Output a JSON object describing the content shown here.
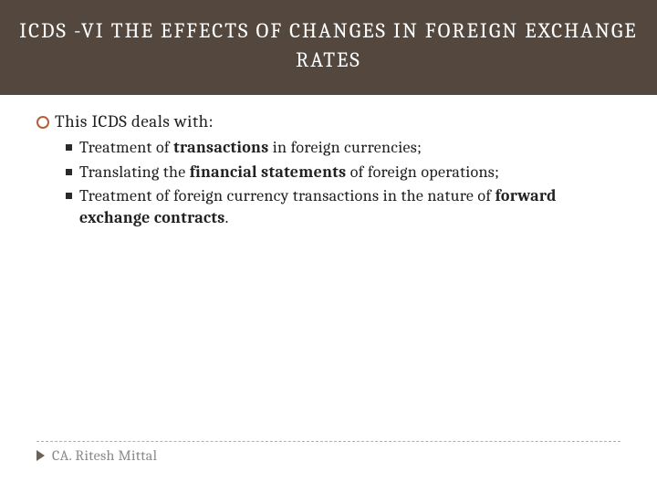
{
  "title": "ICDS -VI THE EFFECTS OF CHANGES IN FOREIGN EXCHANGE RATES",
  "intro": "This ICDS deals with:",
  "bullets": [
    {
      "pre": "Treatment of ",
      "bold": "transactions",
      "post": " in foreign currencies;"
    },
    {
      "pre": "Translating the ",
      "bold": "financial statements",
      "post": " of foreign operations;"
    },
    {
      "pre": "Treatment of foreign currency transactions in the nature of ",
      "bold": "forward exchange contracts",
      "post": "."
    }
  ],
  "author": "CA. Ritesh Mittal",
  "colors": {
    "header_bg": "#54483e",
    "circle_border": "#b45f3a",
    "square_bullet": "#2a2a2a",
    "triangle": "#6b6257",
    "author_text": "#8a8a8a"
  }
}
